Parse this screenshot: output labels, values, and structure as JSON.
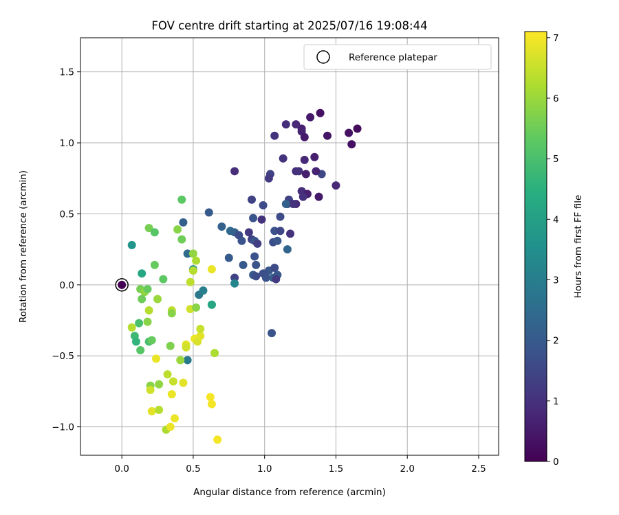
{
  "chart_data": {
    "type": "scatter",
    "title": "FOV centre drift starting at 2025/07/16 19:08:44",
    "xlabel": "Angular distance from reference (arcmin)",
    "ylabel": "Rotation from reference (arcmin)",
    "xlim": [
      -0.29,
      2.64
    ],
    "ylim": [
      -1.2,
      1.74
    ],
    "xticks": [
      0.0,
      0.5,
      1.0,
      1.5,
      2.0,
      2.5
    ],
    "xtick_labels": [
      "0.0",
      "0.5",
      "1.0",
      "1.5",
      "2.0",
      "2.5"
    ],
    "yticks": [
      -1.0,
      -0.5,
      0.0,
      0.5,
      1.0,
      1.5
    ],
    "ytick_labels": [
      "−1.0",
      "−0.5",
      "0.0",
      "0.5",
      "1.0",
      "1.5"
    ],
    "grid": true,
    "legend": {
      "placement": "top-right",
      "entries": [
        "Reference platepar"
      ]
    },
    "colorbar": {
      "label": "Hours from first FF file",
      "range": [
        0,
        7.1
      ],
      "ticks": [
        0,
        1,
        2,
        3,
        4,
        5,
        6,
        7
      ],
      "tick_labels": [
        "0",
        "1",
        "2",
        "3",
        "4",
        "5",
        "6",
        "7"
      ],
      "colormap": "viridis"
    },
    "reference_point": {
      "x": 0.0,
      "y": 0.0,
      "name": "Reference platepar"
    },
    "series": [
      {
        "points": [
          [
            1.39,
            1.21,
            0.3
          ],
          [
            1.32,
            1.18,
            0.5
          ],
          [
            1.65,
            1.1,
            0.2
          ],
          [
            1.59,
            1.07,
            0.35
          ],
          [
            1.44,
            1.05,
            0.4
          ],
          [
            1.26,
            1.1,
            0.6
          ],
          [
            1.26,
            1.08,
            0.7
          ],
          [
            1.22,
            1.13,
            0.8
          ],
          [
            1.15,
            1.13,
            0.9
          ],
          [
            1.07,
            1.05,
            1.0
          ],
          [
            1.28,
            1.04,
            0.5
          ],
          [
            1.61,
            0.99,
            0.3
          ],
          [
            1.35,
            0.9,
            0.6
          ],
          [
            1.28,
            0.88,
            0.8
          ],
          [
            1.13,
            0.89,
            1.0
          ],
          [
            1.4,
            0.78,
            1.5
          ],
          [
            1.36,
            0.8,
            0.7
          ],
          [
            1.22,
            0.8,
            0.9
          ],
          [
            1.24,
            0.8,
            1.0
          ],
          [
            1.29,
            0.78,
            0.6
          ],
          [
            1.04,
            0.78,
            1.4
          ],
          [
            1.03,
            0.75,
            1.2
          ],
          [
            0.79,
            0.8,
            0.9
          ],
          [
            1.5,
            0.7,
            0.8
          ],
          [
            1.26,
            0.66,
            0.9
          ],
          [
            1.3,
            0.64,
            0.6
          ],
          [
            1.27,
            0.62,
            1.0
          ],
          [
            1.38,
            0.62,
            0.5
          ],
          [
            1.17,
            0.6,
            1.4
          ],
          [
            1.16,
            0.57,
            1.2
          ],
          [
            1.22,
            0.57,
            0.8
          ],
          [
            0.91,
            0.6,
            1.4
          ],
          [
            0.99,
            0.56,
            1.6
          ],
          [
            1.2,
            0.57,
            1.0
          ],
          [
            1.15,
            0.57,
            2.2
          ],
          [
            1.11,
            0.48,
            1.6
          ],
          [
            0.92,
            0.47,
            1.8
          ],
          [
            0.98,
            0.46,
            1.0
          ],
          [
            0.61,
            0.51,
            2.0
          ],
          [
            0.7,
            0.41,
            2.2
          ],
          [
            1.07,
            0.38,
            1.8
          ],
          [
            1.11,
            0.38,
            1.5
          ],
          [
            1.18,
            0.36,
            1.0
          ],
          [
            0.76,
            0.38,
            2.4
          ],
          [
            0.79,
            0.37,
            2.2
          ],
          [
            0.89,
            0.37,
            1.2
          ],
          [
            0.82,
            0.35,
            1.6
          ],
          [
            0.84,
            0.31,
            1.8
          ],
          [
            0.91,
            0.32,
            1.4
          ],
          [
            0.93,
            0.31,
            1.9
          ],
          [
            0.95,
            0.29,
            1.3
          ],
          [
            1.06,
            0.3,
            1.7
          ],
          [
            1.09,
            0.31,
            1.9
          ],
          [
            1.16,
            0.25,
            2.3
          ],
          [
            0.75,
            0.19,
            2.0
          ],
          [
            0.93,
            0.2,
            1.8
          ],
          [
            0.85,
            0.14,
            2.0
          ],
          [
            0.94,
            0.14,
            1.8
          ],
          [
            1.03,
            0.1,
            1.9
          ],
          [
            1.07,
            0.12,
            1.6
          ],
          [
            0.99,
            0.08,
            1.7
          ],
          [
            0.92,
            0.07,
            2.0
          ],
          [
            0.94,
            0.06,
            1.6
          ],
          [
            1.06,
            0.05,
            2.2
          ],
          [
            1.09,
            0.07,
            1.9
          ],
          [
            1.01,
            0.05,
            1.8
          ],
          [
            1.08,
            0.04,
            1.2
          ],
          [
            0.79,
            0.05,
            1.4
          ],
          [
            0.79,
            0.01,
            3.2
          ],
          [
            1.05,
            -0.34,
            1.8
          ],
          [
            0.43,
            0.44,
            2.2
          ],
          [
            0.46,
            0.22,
            2.5
          ],
          [
            0.5,
            0.11,
            3.5
          ],
          [
            0.54,
            -0.07,
            2.8
          ],
          [
            0.57,
            -0.04,
            3.0
          ],
          [
            0.63,
            -0.14,
            3.9
          ],
          [
            0.63,
            -0.14,
            4.2
          ],
          [
            0.46,
            -0.53,
            2.9
          ],
          [
            0.07,
            0.28,
            3.7
          ],
          [
            0.14,
            0.08,
            4.2
          ],
          [
            0.42,
            0.6,
            5.3
          ],
          [
            0.19,
            0.4,
            5.6
          ],
          [
            0.23,
            0.37,
            5.2
          ],
          [
            0.39,
            0.39,
            5.8
          ],
          [
            0.42,
            0.32,
            5.5
          ],
          [
            0.5,
            0.22,
            5.9
          ],
          [
            0.52,
            0.17,
            6.2
          ],
          [
            0.23,
            0.14,
            5.4
          ],
          [
            0.5,
            0.1,
            6.3
          ],
          [
            0.29,
            0.04,
            5.3
          ],
          [
            0.48,
            0.02,
            6.4
          ],
          [
            0.13,
            -0.03,
            5.6
          ],
          [
            0.16,
            -0.05,
            5.9
          ],
          [
            0.18,
            -0.03,
            5.4
          ],
          [
            0.14,
            -0.1,
            5.5
          ],
          [
            0.25,
            -0.1,
            6.0
          ],
          [
            0.19,
            -0.18,
            6.3
          ],
          [
            0.35,
            -0.18,
            6.4
          ],
          [
            0.35,
            -0.2,
            5.8
          ],
          [
            0.12,
            -0.27,
            5.0
          ],
          [
            0.18,
            -0.26,
            5.8
          ],
          [
            0.07,
            -0.3,
            6.3
          ],
          [
            0.09,
            -0.36,
            4.8
          ],
          [
            0.1,
            -0.4,
            4.6
          ],
          [
            0.19,
            -0.4,
            5.0
          ],
          [
            0.21,
            -0.39,
            5.4
          ],
          [
            0.13,
            -0.46,
            5.2
          ],
          [
            0.34,
            -0.43,
            5.7
          ],
          [
            0.45,
            -0.42,
            6.8
          ],
          [
            0.45,
            -0.44,
            6.6
          ],
          [
            0.51,
            -0.38,
            6.9
          ],
          [
            0.53,
            -0.4,
            6.7
          ],
          [
            0.55,
            -0.36,
            6.8
          ],
          [
            0.55,
            -0.31,
            6.5
          ],
          [
            0.48,
            -0.17,
            6.6
          ],
          [
            0.52,
            -0.16,
            5.8
          ],
          [
            0.63,
            0.11,
            6.9
          ],
          [
            0.65,
            -0.48,
            6.2
          ],
          [
            0.24,
            -0.52,
            6.9
          ],
          [
            0.41,
            -0.53,
            6.0
          ],
          [
            0.2,
            -0.71,
            5.8
          ],
          [
            0.26,
            -0.7,
            5.9
          ],
          [
            0.32,
            -0.63,
            6.4
          ],
          [
            0.36,
            -0.68,
            6.5
          ],
          [
            0.43,
            -0.69,
            6.8
          ],
          [
            0.2,
            -0.74,
            6.6
          ],
          [
            0.35,
            -0.77,
            6.9
          ],
          [
            0.62,
            -0.79,
            7.0
          ],
          [
            0.63,
            -0.84,
            7.0
          ],
          [
            0.21,
            -0.89,
            6.8
          ],
          [
            0.26,
            -0.88,
            6.3
          ],
          [
            0.37,
            -0.94,
            6.9
          ],
          [
            0.31,
            -1.02,
            6.2
          ],
          [
            0.34,
            -1.0,
            6.9
          ],
          [
            0.67,
            -1.09,
            7.0
          ]
        ]
      }
    ]
  }
}
